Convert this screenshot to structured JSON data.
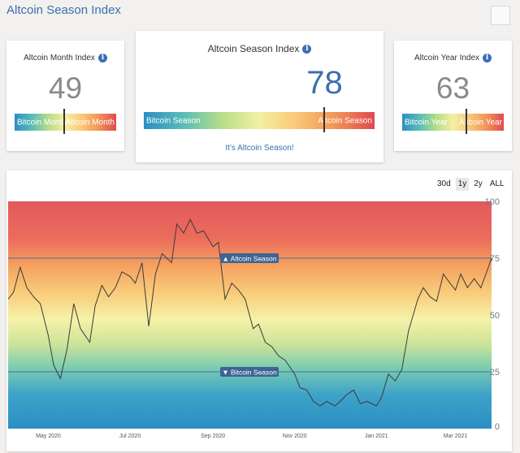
{
  "page": {
    "title": "Altcoin Season Index"
  },
  "month_card": {
    "label": "Altcoin Month Index",
    "value": "49",
    "left_label": "Bitcoin Month",
    "right_label": "Altcoin Month",
    "marker_level": 0.49
  },
  "main_card": {
    "label": "Altcoin Season Index",
    "value": "78",
    "left_label": "Bitcoin Season",
    "right_label": "Altcoin Season",
    "marker_level": 0.78,
    "status": "It's Altcoin Season!"
  },
  "year_card": {
    "label": "Altcoin Year Index",
    "value": "63",
    "left_label": "Bitcoin Year",
    "right_label": "Altcoin Year",
    "marker_level": 0.63
  },
  "colors": {
    "accent": "#3d6fae",
    "info_icon": "#3a6fb5",
    "threshold_line": "#4a6f9b"
  },
  "icons": {
    "info": "info-icon"
  },
  "range_buttons": [
    {
      "label": "30d",
      "active": false
    },
    {
      "label": "1y",
      "active": true
    },
    {
      "label": "2y",
      "active": false
    },
    {
      "label": "ALL",
      "active": false
    }
  ],
  "chart_data": {
    "type": "line",
    "x": [
      "2020-04-01",
      "2020-04-05",
      "2020-04-10",
      "2020-04-15",
      "2020-04-20",
      "2020-04-25",
      "2020-05-01",
      "2020-05-05",
      "2020-05-10",
      "2020-05-15",
      "2020-05-20",
      "2020-05-25",
      "2020-06-01",
      "2020-06-05",
      "2020-06-10",
      "2020-06-15",
      "2020-06-20",
      "2020-06-25",
      "2020-07-01",
      "2020-07-05",
      "2020-07-10",
      "2020-07-15",
      "2020-07-20",
      "2020-07-25",
      "2020-08-01",
      "2020-08-05",
      "2020-08-10",
      "2020-08-15",
      "2020-08-20",
      "2020-08-25",
      "2020-09-01",
      "2020-09-05",
      "2020-09-10",
      "2020-09-15",
      "2020-09-20",
      "2020-09-25",
      "2020-10-01",
      "2020-10-05",
      "2020-10-10",
      "2020-10-15",
      "2020-10-20",
      "2020-10-25",
      "2020-11-01",
      "2020-11-05",
      "2020-11-10",
      "2020-11-15",
      "2020-11-20",
      "2020-11-25",
      "2020-12-01",
      "2020-12-05",
      "2020-12-10",
      "2020-12-15",
      "2020-12-20",
      "2020-12-25",
      "2021-01-01",
      "2021-01-05",
      "2021-01-10",
      "2021-01-15",
      "2021-01-20",
      "2021-01-25",
      "2021-02-01",
      "2021-02-05",
      "2021-02-10",
      "2021-02-15",
      "2021-02-20",
      "2021-02-25",
      "2021-03-01",
      "2021-03-05",
      "2021-03-10",
      "2021-03-15",
      "2021-03-20",
      "2021-03-25",
      "2021-03-28"
    ],
    "values": [
      57,
      60,
      71,
      62,
      58,
      55,
      41,
      28,
      22,
      35,
      55,
      44,
      38,
      54,
      63,
      58,
      62,
      69,
      67,
      64,
      73,
      45,
      68,
      77,
      73,
      90,
      86,
      92,
      86,
      87,
      80,
      82,
      57,
      64,
      61,
      57,
      44,
      46,
      38,
      36,
      32,
      30,
      24,
      18,
      17,
      12,
      10,
      12,
      10,
      12,
      15,
      17,
      11,
      12,
      10,
      14,
      24,
      21,
      26,
      43,
      57,
      62,
      58,
      56,
      68,
      64,
      61,
      68,
      62,
      66,
      62,
      70,
      75
    ],
    "ylim": [
      0,
      100
    ],
    "yticks": [
      0,
      25,
      50,
      75,
      100
    ],
    "xticks": [
      {
        "date": "2020-05-01",
        "label": "May 2020"
      },
      {
        "date": "2020-07-01",
        "label": "Jul 2020"
      },
      {
        "date": "2020-09-01",
        "label": "Sep 2020"
      },
      {
        "date": "2020-11-01",
        "label": "Nov 2020"
      },
      {
        "date": "2021-01-01",
        "label": "Jan 2021"
      },
      {
        "date": "2021-03-01",
        "label": "Mar 2021"
      }
    ],
    "thresholds": [
      {
        "value": 75,
        "label": "▲ Altcoin Season"
      },
      {
        "value": 25,
        "label": "▼ Bitcoin Season"
      }
    ],
    "grid": false,
    "legend": "none"
  }
}
